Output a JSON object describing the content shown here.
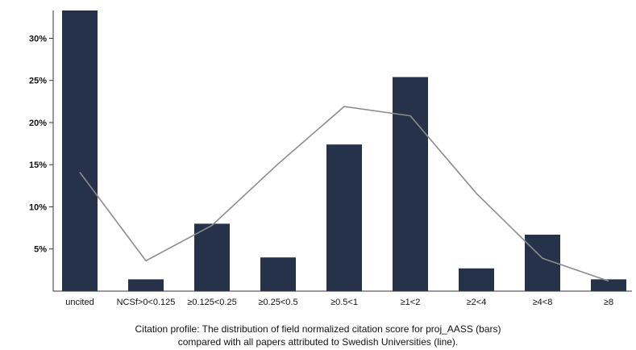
{
  "chart_data": {
    "type": "bar",
    "categories": [
      "uncited",
      "NCSf>0<0.125",
      "≥0.125<0.25",
      "≥0.25<0.5",
      "≥0.5<1",
      "≥1<2",
      "≥2<4",
      "≥4<8",
      "≥8"
    ],
    "series": [
      {
        "values": [
          33.3,
          1.4,
          8.0,
          4.0,
          17.4,
          25.4,
          2.7,
          6.7,
          1.4
        ]
      },
      {
        "values": [
          14.1,
          3.6,
          7.8,
          15.1,
          21.9,
          20.8,
          11.6,
          3.9,
          1.2
        ]
      }
    ],
    "series_styles": [
      "bars",
      "line"
    ],
    "ylim": [
      0,
      33.3
    ],
    "yticks": [
      5,
      10,
      15,
      20,
      25,
      30
    ],
    "ytick_labels": [
      "5%",
      "10%",
      "15%",
      "20%",
      "25%",
      "30%"
    ],
    "grid": false,
    "caption_lines": [
      "Citation profile: The distribution of field normalized citation score for proj_AASS (bars)",
      "compared with all papers attributed to Swedish Universities (line)."
    ],
    "colors": {
      "bar": "#263249",
      "line": "#8c8c8c",
      "axis": "#333333",
      "text": "#111111"
    }
  }
}
